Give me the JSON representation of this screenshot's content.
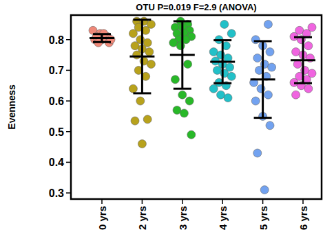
{
  "chart_data": {
    "type": "strip",
    "title": "OTU P=0.019 F=2.9 (ANOVA)",
    "y_label": "Evenness",
    "categories": [
      "0 yrs",
      "2 yrs",
      "3 yrs",
      "4 yrs",
      "5 yrs",
      "6 yrs"
    ],
    "ylim": [
      0.28,
      0.88
    ],
    "yticks": [
      0.3,
      0.4,
      0.5,
      0.6,
      0.7,
      0.8
    ],
    "groups": [
      {
        "color": "#f08878",
        "mean": 0.805,
        "sd": 0.013,
        "values": [
          0.83,
          0.82,
          0.81,
          0.8,
          0.8,
          0.79,
          0.81,
          0.82,
          0.8,
          0.79
        ]
      },
      {
        "color": "#b8a21c",
        "mean": 0.745,
        "sd": 0.12,
        "values": [
          0.86,
          0.86,
          0.85,
          0.84,
          0.83,
          0.82,
          0.8,
          0.79,
          0.78,
          0.77,
          0.76,
          0.75,
          0.73,
          0.72,
          0.7,
          0.68,
          0.64,
          0.6,
          0.54,
          0.535,
          0.46
        ]
      },
      {
        "color": "#28b828",
        "mean": 0.75,
        "sd": 0.11,
        "values": [
          0.86,
          0.85,
          0.84,
          0.84,
          0.83,
          0.82,
          0.82,
          0.81,
          0.8,
          0.8,
          0.79,
          0.78,
          0.72,
          0.67,
          0.62,
          0.6,
          0.57,
          0.56,
          0.49
        ]
      },
      {
        "color": "#22c0c8",
        "mean": 0.728,
        "sd": 0.07,
        "values": [
          0.85,
          0.82,
          0.8,
          0.78,
          0.76,
          0.75,
          0.74,
          0.73,
          0.72,
          0.71,
          0.7,
          0.69,
          0.68,
          0.66,
          0.65,
          0.64,
          0.62,
          0.61
        ]
      },
      {
        "color": "#72a2f0",
        "mean": 0.67,
        "sd": 0.125,
        "values": [
          0.85,
          0.8,
          0.78,
          0.76,
          0.74,
          0.72,
          0.71,
          0.7,
          0.68,
          0.66,
          0.64,
          0.62,
          0.6,
          0.55,
          0.52,
          0.43,
          0.31
        ]
      },
      {
        "color": "#f064e0",
        "mean": 0.733,
        "sd": 0.075,
        "values": [
          0.84,
          0.83,
          0.82,
          0.81,
          0.8,
          0.78,
          0.76,
          0.75,
          0.74,
          0.72,
          0.7,
          0.69,
          0.68,
          0.67,
          0.66,
          0.65,
          0.64,
          0.62
        ]
      }
    ]
  }
}
